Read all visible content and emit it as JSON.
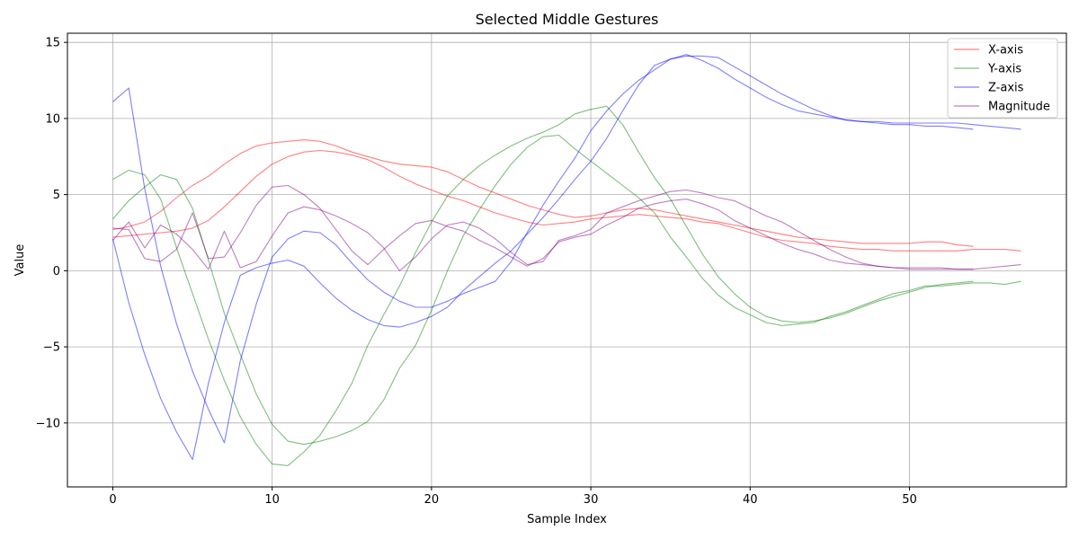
{
  "chart_data": {
    "type": "line",
    "title": "Selected Middle Gestures",
    "xlabel": "Sample Index",
    "ylabel": "Value",
    "xlim": [
      -2.85,
      59.85
    ],
    "ylim": [
      -14.2,
      15.6
    ],
    "xticks": [
      0,
      10,
      20,
      30,
      40,
      50
    ],
    "yticks": [
      -10,
      -5,
      0,
      5,
      10,
      15
    ],
    "grid": true,
    "legend_position": "top-right",
    "colors": {
      "X-axis": "#ff0000",
      "Y-axis": "#008000",
      "Z-axis": "#0000ff",
      "Magnitude": "#800080"
    },
    "line_opacity": 0.5,
    "legend": [
      "X-axis",
      "Y-axis",
      "Z-axis",
      "Magnitude"
    ],
    "series": [
      {
        "name": "X-axis",
        "color": "#ff0000",
        "x": [
          0,
          1,
          2,
          3,
          4,
          5,
          6,
          7,
          8,
          9,
          10,
          11,
          12,
          13,
          14,
          15,
          16,
          17,
          18,
          19,
          20,
          21,
          22,
          23,
          24,
          25,
          26,
          27,
          28,
          29,
          30,
          31,
          32,
          33,
          34,
          35,
          36,
          37,
          38,
          39,
          40,
          41,
          42,
          43,
          44,
          45,
          46,
          47,
          48,
          49,
          50,
          51,
          52,
          53,
          54
        ],
        "y": [
          2.7,
          2.9,
          3.2,
          3.9,
          4.8,
          5.6,
          6.2,
          7.0,
          7.7,
          8.2,
          8.4,
          8.5,
          8.6,
          8.5,
          8.2,
          7.8,
          7.5,
          7.2,
          7.0,
          6.9,
          6.8,
          6.5,
          6.0,
          5.5,
          5.1,
          4.7,
          4.3,
          4.0,
          3.7,
          3.5,
          3.6,
          3.8,
          4.0,
          4.1,
          4.0,
          3.8,
          3.6,
          3.4,
          3.2,
          3.0,
          2.8,
          2.6,
          2.4,
          2.2,
          2.1,
          2.0,
          1.9,
          1.8,
          1.8,
          1.8,
          1.8,
          1.9,
          1.9,
          1.7,
          1.6
        ]
      },
      {
        "name": "X-axis",
        "color": "#ff0000",
        "x": [
          0,
          1,
          2,
          3,
          4,
          5,
          6,
          7,
          8,
          9,
          10,
          11,
          12,
          13,
          14,
          15,
          16,
          17,
          18,
          19,
          20,
          21,
          22,
          23,
          24,
          25,
          26,
          27,
          28,
          29,
          30,
          31,
          32,
          33,
          34,
          35,
          36,
          37,
          38,
          39,
          40,
          41,
          42,
          43,
          44,
          45,
          46,
          47,
          48,
          49,
          50,
          51,
          52,
          53,
          54,
          55,
          56,
          57
        ],
        "y": [
          2.2,
          2.3,
          2.4,
          2.5,
          2.6,
          2.8,
          3.3,
          4.2,
          5.2,
          6.2,
          7.0,
          7.5,
          7.8,
          7.9,
          7.8,
          7.6,
          7.3,
          6.8,
          6.2,
          5.7,
          5.3,
          4.9,
          4.6,
          4.2,
          3.8,
          3.5,
          3.2,
          3.0,
          3.1,
          3.2,
          3.4,
          3.5,
          3.6,
          3.7,
          3.6,
          3.5,
          3.4,
          3.2,
          3.1,
          2.8,
          2.5,
          2.2,
          2.0,
          1.9,
          1.8,
          1.6,
          1.5,
          1.4,
          1.4,
          1.3,
          1.3,
          1.3,
          1.3,
          1.3,
          1.4,
          1.4,
          1.4,
          1.3
        ]
      },
      {
        "name": "Y-axis",
        "color": "#008000",
        "x": [
          0,
          1,
          2,
          3,
          4,
          5,
          6,
          7,
          8,
          9,
          10,
          11,
          12,
          13,
          14,
          15,
          16,
          17,
          18,
          19,
          20,
          21,
          22,
          23,
          24,
          25,
          26,
          27,
          28,
          29,
          30,
          31,
          32,
          33,
          34,
          35,
          36,
          37,
          38,
          39,
          40,
          41,
          42,
          43,
          44,
          45,
          46,
          47,
          48,
          49,
          50,
          51,
          52,
          53,
          54
        ],
        "y": [
          6.0,
          6.6,
          6.3,
          4.7,
          1.5,
          -1.5,
          -4.5,
          -7.2,
          -9.6,
          -11.4,
          -12.7,
          -12.8,
          -11.9,
          -10.8,
          -9.2,
          -7.4,
          -4.9,
          -2.9,
          -1.0,
          1.2,
          3.2,
          4.9,
          6.0,
          6.9,
          7.6,
          8.2,
          8.7,
          9.1,
          9.6,
          10.3,
          10.6,
          10.8,
          9.6,
          7.8,
          6.1,
          4.7,
          2.9,
          1.1,
          -0.4,
          -1.5,
          -2.4,
          -3.0,
          -3.3,
          -3.4,
          -3.3,
          -3.1,
          -2.8,
          -2.4,
          -2.0,
          -1.7,
          -1.4,
          -1.1,
          -0.9,
          -0.8,
          -0.7
        ]
      },
      {
        "name": "Y-axis",
        "color": "#008000",
        "x": [
          0,
          1,
          2,
          3,
          4,
          5,
          6,
          7,
          8,
          9,
          10,
          11,
          12,
          13,
          14,
          15,
          16,
          17,
          18,
          19,
          20,
          21,
          22,
          23,
          24,
          25,
          26,
          27,
          28,
          29,
          30,
          31,
          32,
          33,
          34,
          35,
          36,
          37,
          38,
          39,
          40,
          41,
          42,
          43,
          44,
          45,
          46,
          47,
          48,
          49,
          50,
          51,
          52,
          53,
          54,
          55,
          56,
          57
        ],
        "y": [
          3.4,
          4.6,
          5.5,
          6.3,
          6.0,
          4.1,
          0.7,
          -2.8,
          -5.5,
          -8.1,
          -10.1,
          -11.2,
          -11.4,
          -11.2,
          -10.9,
          -10.5,
          -9.9,
          -8.5,
          -6.4,
          -4.9,
          -2.6,
          0.0,
          2.3,
          4.0,
          5.6,
          7.0,
          8.1,
          8.8,
          8.9,
          8.0,
          7.2,
          6.4,
          5.6,
          4.8,
          3.8,
          2.2,
          0.9,
          -0.5,
          -1.6,
          -2.4,
          -2.9,
          -3.4,
          -3.6,
          -3.5,
          -3.4,
          -3.0,
          -2.7,
          -2.3,
          -1.9,
          -1.5,
          -1.3,
          -1.0,
          -1.0,
          -0.9,
          -0.8,
          -0.8,
          -0.9,
          -0.7
        ]
      },
      {
        "name": "Z-axis",
        "color": "#0000ff",
        "x": [
          0,
          1,
          2,
          3,
          4,
          5,
          6,
          7,
          8,
          9,
          10,
          11,
          12,
          13,
          14,
          15,
          16,
          17,
          18,
          19,
          20,
          21,
          22,
          23,
          24,
          25,
          26,
          27,
          28,
          29,
          30,
          31,
          32,
          33,
          34,
          35,
          36,
          37,
          38,
          39,
          40,
          41,
          42,
          43,
          44,
          45,
          46,
          47,
          48,
          49,
          50,
          51,
          52,
          53,
          54,
          55,
          56,
          57
        ],
        "y": [
          11.1,
          12.0,
          5.4,
          0.3,
          -3.5,
          -6.6,
          -9.1,
          -11.3,
          -5.9,
          -2.2,
          0.9,
          2.1,
          2.6,
          2.5,
          1.7,
          0.5,
          -0.6,
          -1.4,
          -2.0,
          -2.4,
          -2.4,
          -2.0,
          -1.5,
          -1.1,
          -0.7,
          0.6,
          2.5,
          4.3,
          5.9,
          7.4,
          9.2,
          10.5,
          11.6,
          12.5,
          13.2,
          13.9,
          14.1,
          14.1,
          14.0,
          13.4,
          12.8,
          12.2,
          11.6,
          11.1,
          10.6,
          10.2,
          9.9,
          9.8,
          9.8,
          9.7,
          9.7,
          9.7,
          9.7,
          9.7,
          9.6,
          9.5,
          9.4,
          9.3
        ]
      },
      {
        "name": "Z-axis",
        "color": "#0000ff",
        "x": [
          0,
          1,
          2,
          3,
          4,
          5,
          6,
          7,
          8,
          9,
          10,
          11,
          12,
          13,
          14,
          15,
          16,
          17,
          18,
          19,
          20,
          21,
          22,
          23,
          24,
          25,
          26,
          27,
          28,
          29,
          30,
          31,
          32,
          33,
          34,
          35,
          36,
          37,
          38,
          39,
          40,
          41,
          42,
          43,
          44,
          45,
          46,
          47,
          48,
          49,
          50,
          51,
          52,
          53,
          54
        ],
        "y": [
          2.1,
          -2.1,
          -5.5,
          -8.4,
          -10.6,
          -12.4,
          -7.4,
          -3.4,
          -0.3,
          0.2,
          0.5,
          0.7,
          0.3,
          -0.8,
          -1.8,
          -2.6,
          -3.2,
          -3.6,
          -3.7,
          -3.4,
          -3.0,
          -2.4,
          -1.3,
          -0.4,
          0.5,
          1.3,
          2.4,
          3.5,
          4.7,
          6.0,
          7.2,
          8.7,
          10.5,
          12.2,
          13.5,
          13.9,
          14.2,
          13.8,
          13.3,
          12.6,
          12.0,
          11.4,
          10.9,
          10.5,
          10.3,
          10.1,
          9.9,
          9.8,
          9.7,
          9.6,
          9.6,
          9.5,
          9.5,
          9.4,
          9.3
        ]
      },
      {
        "name": "Magnitude",
        "color": "#800080",
        "x": [
          0,
          1,
          2,
          3,
          4,
          5,
          6,
          7,
          8,
          9,
          10,
          11,
          12,
          13,
          14,
          15,
          16,
          17,
          18,
          19,
          20,
          21,
          22,
          23,
          24,
          25,
          26,
          27,
          28,
          29,
          30,
          31,
          32,
          33,
          34,
          35,
          36,
          37,
          38,
          39,
          40,
          41,
          42,
          43,
          44,
          45,
          46,
          47,
          48,
          49,
          50,
          51,
          52,
          53,
          54
        ],
        "y": [
          2.0,
          3.2,
          1.5,
          3.0,
          2.4,
          1.4,
          0.1,
          2.6,
          0.2,
          0.6,
          2.3,
          3.8,
          4.2,
          4.0,
          3.6,
          3.1,
          2.5,
          1.5,
          0.0,
          0.9,
          2.1,
          3.0,
          3.2,
          2.8,
          2.1,
          1.2,
          0.4,
          0.6,
          2.0,
          2.3,
          2.7,
          3.8,
          4.2,
          4.6,
          4.9,
          5.2,
          5.3,
          5.1,
          4.8,
          4.6,
          4.1,
          3.6,
          3.2,
          2.6,
          2.0,
          1.4,
          0.9,
          0.5,
          0.3,
          0.2,
          0.1,
          0.1,
          0.1,
          0.1,
          0.1
        ]
      },
      {
        "name": "Magnitude",
        "color": "#800080",
        "x": [
          0,
          1,
          2,
          3,
          4,
          5,
          6,
          7,
          8,
          9,
          10,
          11,
          12,
          13,
          14,
          15,
          16,
          17,
          18,
          19,
          20,
          21,
          22,
          23,
          24,
          25,
          26,
          27,
          28,
          29,
          30,
          31,
          32,
          33,
          34,
          35,
          36,
          37,
          38,
          39,
          40,
          41,
          42,
          43,
          44,
          45,
          46,
          47,
          48,
          49,
          50,
          51,
          52,
          53,
          54,
          55,
          56,
          57
        ],
        "y": [
          2.8,
          2.7,
          0.8,
          0.6,
          1.4,
          3.8,
          0.8,
          0.9,
          2.5,
          4.3,
          5.5,
          5.6,
          5.0,
          4.1,
          2.7,
          1.3,
          0.4,
          1.4,
          2.3,
          3.1,
          3.3,
          2.9,
          2.6,
          2.0,
          1.5,
          0.9,
          0.3,
          0.8,
          1.9,
          2.2,
          2.4,
          3.0,
          3.5,
          4.1,
          4.4,
          4.6,
          4.7,
          4.4,
          4.0,
          3.3,
          2.8,
          2.3,
          1.8,
          1.4,
          1.1,
          0.7,
          0.5,
          0.4,
          0.3,
          0.2,
          0.2,
          0.2,
          0.2,
          0.1,
          0.1,
          0.2,
          0.3,
          0.4
        ]
      }
    ]
  }
}
